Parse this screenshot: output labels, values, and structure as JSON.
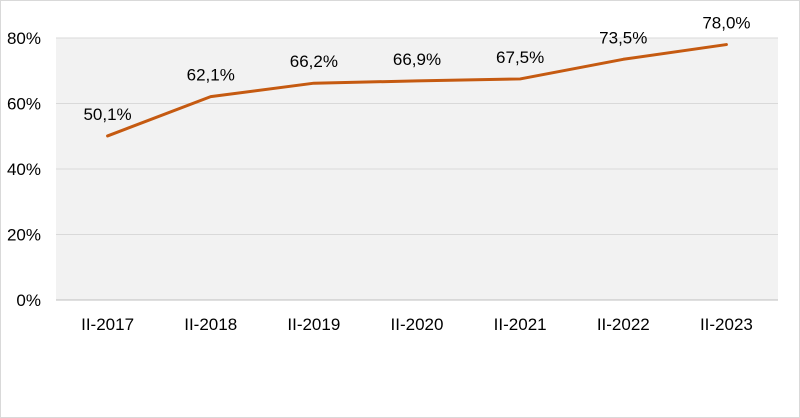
{
  "chart_data": {
    "type": "line",
    "title": "",
    "xlabel": "",
    "ylabel": "",
    "categories": [
      "II-2017",
      "II-2018",
      "II-2019",
      "II-2020",
      "II-2021",
      "II-2022",
      "II-2023"
    ],
    "series": [
      {
        "values": [
          50.1,
          62.1,
          66.2,
          66.9,
          67.5,
          73.5,
          78.0
        ],
        "labels": [
          "50,1%",
          "62,1%",
          "66,2%",
          "66,9%",
          "67,5%",
          "73,5%",
          "78,0%"
        ],
        "color": "#c55a11"
      }
    ],
    "ylim": [
      0,
      80
    ],
    "yticks": [
      "0%",
      "20%",
      "40%",
      "60%",
      "80%"
    ],
    "grid": true,
    "legend": "none",
    "plot_background": "#f2f2f2"
  }
}
